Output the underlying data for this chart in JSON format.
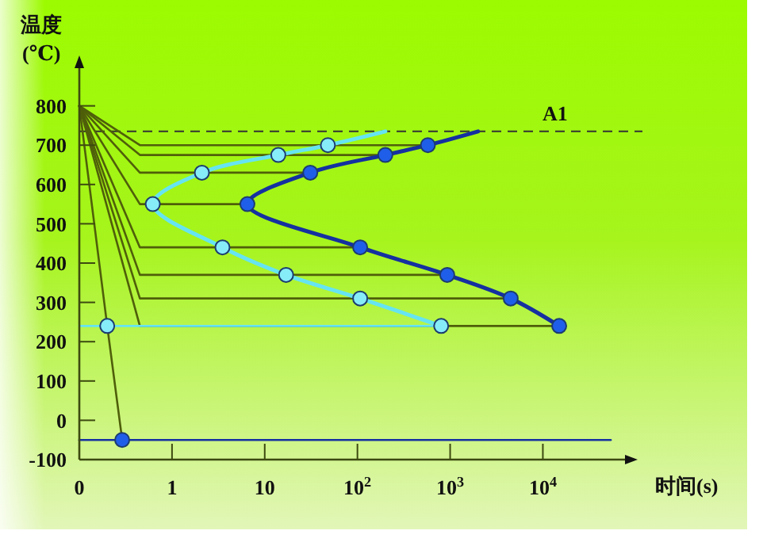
{
  "chart_data": {
    "type": "line",
    "xlabel": "时间(s)",
    "ylabel": "温度 (℃)",
    "log": "x",
    "xlim": [
      0.1,
      80000
    ],
    "ylim": [
      -100,
      900
    ],
    "xticks": [
      {
        "value": 0.1,
        "label": "0"
      },
      1,
      10,
      {
        "value": 100,
        "label": "10$^{2}$"
      },
      {
        "value": 1000,
        "label": "10$^{3}$"
      },
      {
        "value": 10000,
        "label": "10$^{4}$"
      }
    ],
    "yticks": [
      -100,
      0,
      100,
      200,
      300,
      400,
      500,
      600,
      700,
      800
    ],
    "ref_lines": [
      {
        "axis": "y",
        "value": 735,
        "label": "A1",
        "line_style": "dashed",
        "color": "#333333"
      }
    ],
    "series": [
      {
        "type": "line",
        "color": "#4f5f0a",
        "x": [
          0.1,
          0.45,
          575
        ],
        "values": [
          800,
          700,
          700
        ]
      },
      {
        "type": "line",
        "color": "#4f5f0a",
        "x": [
          0.1,
          0.45,
          200
        ],
        "values": [
          800,
          675,
          675
        ]
      },
      {
        "type": "line",
        "color": "#4f5f0a",
        "x": [
          0.1,
          0.45,
          31
        ],
        "values": [
          800,
          630,
          630
        ]
      },
      {
        "type": "line",
        "color": "#4f5f0a",
        "x": [
          0.1,
          0.45,
          6.5
        ],
        "values": [
          800,
          550,
          550
        ]
      },
      {
        "type": "line",
        "color": "#4f5f0a",
        "x": [
          0.1,
          0.45,
          107
        ],
        "values": [
          800,
          440,
          440
        ]
      },
      {
        "type": "line",
        "color": "#4f5f0a",
        "x": [
          0.1,
          0.45,
          930
        ],
        "values": [
          800,
          370,
          370
        ]
      },
      {
        "type": "line",
        "color": "#4f5f0a",
        "x": [
          0.1,
          0.45,
          4500
        ],
        "values": [
          800,
          310,
          310
        ]
      },
      {
        "type": "line",
        "color": "#4f5f0a",
        "x": [
          0.1,
          0.45,
          15000
        ],
        "values": [
          800,
          240,
          240
        ]
      },
      {
        "type": "line",
        "color": "#4f5f0a",
        "x": [
          0.1,
          0.2,
          0.29
        ],
        "values": [
          800,
          240,
          -50
        ]
      },
      {
        "type": "line",
        "color": "#66e4f2",
        "x": [
          0.1,
          800
        ],
        "values": [
          240,
          240
        ]
      },
      {
        "type": "line",
        "color": "#1530a0",
        "x": [
          0.1,
          54000
        ],
        "values": [
          -50,
          -50
        ]
      },
      {
        "type": "line",
        "color": "#66e4f2",
        "x": [
          200,
          48,
          14,
          2.1,
          0.62,
          3.5,
          17,
          107,
          800
        ],
        "values": [
          735,
          700,
          675,
          630,
          550,
          440,
          370,
          310,
          240
        ]
      },
      {
        "type": "line",
        "color": "#1530a0",
        "x": [
          2000,
          575,
          200,
          31,
          6.5,
          107,
          930,
          4500,
          15000
        ],
        "values": [
          735,
          700,
          675,
          630,
          550,
          440,
          370,
          310,
          240
        ]
      },
      {
        "type": "scatter",
        "color": "#86ecf7",
        "marker": "circle",
        "x": [
          48,
          14,
          2.1,
          0.62,
          3.5,
          17,
          107,
          800,
          0.2
        ],
        "values": [
          700,
          675,
          630,
          550,
          440,
          370,
          310,
          240,
          240
        ]
      },
      {
        "type": "scatter",
        "color": "#1f5ee8",
        "marker": "circle",
        "x": [
          575,
          200,
          31,
          6.5,
          107,
          930,
          4500,
          15000,
          0.29
        ],
        "values": [
          700,
          675,
          630,
          550,
          440,
          370,
          310,
          240,
          -50
        ]
      }
    ]
  }
}
